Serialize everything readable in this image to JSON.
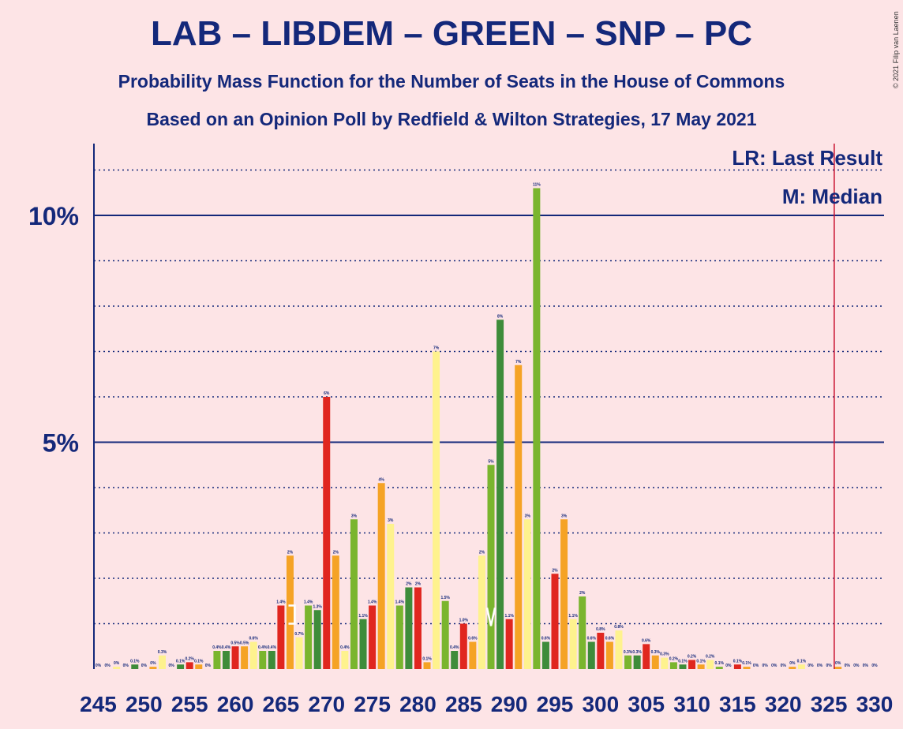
{
  "title": "LAB – LIBDEM – GREEN – SNP – PC",
  "subtitle": "Probability Mass Function for the Number of Seats in the House of Commons",
  "subtitle2": "Based on an Opinion Poll by Redfield & Wilton Strategies, 17 May 2021",
  "copyright": "© 2021 Filip van Laenen",
  "legend": {
    "last_result": "LR: Last Result",
    "median": "M: Median"
  },
  "colors": {
    "background": "#fde4e6",
    "text": "#14287a",
    "palette": [
      "#e0261f",
      "#f5a325",
      "#fef28e",
      "#7ab52e",
      "#3e8c3a"
    ],
    "last_result_line": "#c8102e"
  },
  "chart_data": {
    "type": "bar",
    "x_min": 245,
    "x_max": 330,
    "ylim": [
      0,
      11.5
    ],
    "y_major_ticks": [
      5,
      10
    ],
    "y_tick_labels": [
      "5%",
      "10%"
    ],
    "x_tick_labels": [
      "245",
      "250",
      "255",
      "260",
      "265",
      "270",
      "275",
      "280",
      "285",
      "290",
      "295",
      "300",
      "305",
      "310",
      "315",
      "320",
      "325",
      "330"
    ],
    "last_result": 326,
    "median": 288,
    "values": [
      0,
      0,
      0.05,
      0,
      0.1,
      0,
      0.05,
      0.3,
      0,
      0.1,
      0.15,
      0.1,
      0,
      0.4,
      0.4,
      0.5,
      0.5,
      0.6,
      0.4,
      0.4,
      1.4,
      2.5,
      0.7,
      1.4,
      1.3,
      6.0,
      2.5,
      0.4,
      3.3,
      1.1,
      1.4,
      4.1,
      3.2,
      1.4,
      1.8,
      1.8,
      0.15,
      7.0,
      1.5,
      0.4,
      1.0,
      0.6,
      2.5,
      4.5,
      7.7,
      1.1,
      6.7,
      3.3,
      10.6,
      0.6,
      2.1,
      3.3,
      1.1,
      1.6,
      0.6,
      0.8,
      0.6,
      0.85,
      0.3,
      0.3,
      0.55,
      0.3,
      0.25,
      0.15,
      0.1,
      0.2,
      0.1,
      0.2,
      0.05,
      0,
      0.1,
      0.05,
      0,
      0,
      0,
      0,
      0.05,
      0.1,
      0,
      0,
      0,
      0.05,
      0,
      0,
      0,
      0
    ],
    "labels": [
      "0%",
      "0%",
      "0%",
      "0%",
      "0.1%",
      "0%",
      "0%",
      "0.3%",
      "0%",
      "0.1%",
      "0.2%",
      "0.1%",
      "0%",
      "0.4%",
      "0.4%",
      "0.5%",
      "0.5%",
      "0.6%",
      "0.4%",
      "0.4%",
      "1.4%",
      "2%",
      "0.7%",
      "1.4%",
      "1.3%",
      "6%",
      "2%",
      "0.4%",
      "3%",
      "1.1%",
      "1.4%",
      "4%",
      "3%",
      "1.4%",
      "2%",
      "2%",
      "0.1%",
      "7%",
      "1.5%",
      "0.4%",
      "1.0%",
      "0.6%",
      "2%",
      "5%",
      "8%",
      "1.1%",
      "7%",
      "3%",
      "11%",
      "0.6%",
      "2%",
      "3%",
      "1.1%",
      "2%",
      "0.6%",
      "0.8%",
      "0.6%",
      "0.8%",
      "0.3%",
      "0.3%",
      "0.6%",
      "0.3%",
      "0.3%",
      "0.2%",
      "0.1%",
      "0.2%",
      "0.1%",
      "0.2%",
      "0.1%",
      "0%",
      "0.1%",
      "0.1%",
      "0%",
      "0%",
      "0%",
      "0%",
      "0%",
      "0.1%",
      "0%",
      "0%",
      "0%",
      "0%",
      "0%",
      "0%",
      "0%",
      "0%"
    ]
  }
}
